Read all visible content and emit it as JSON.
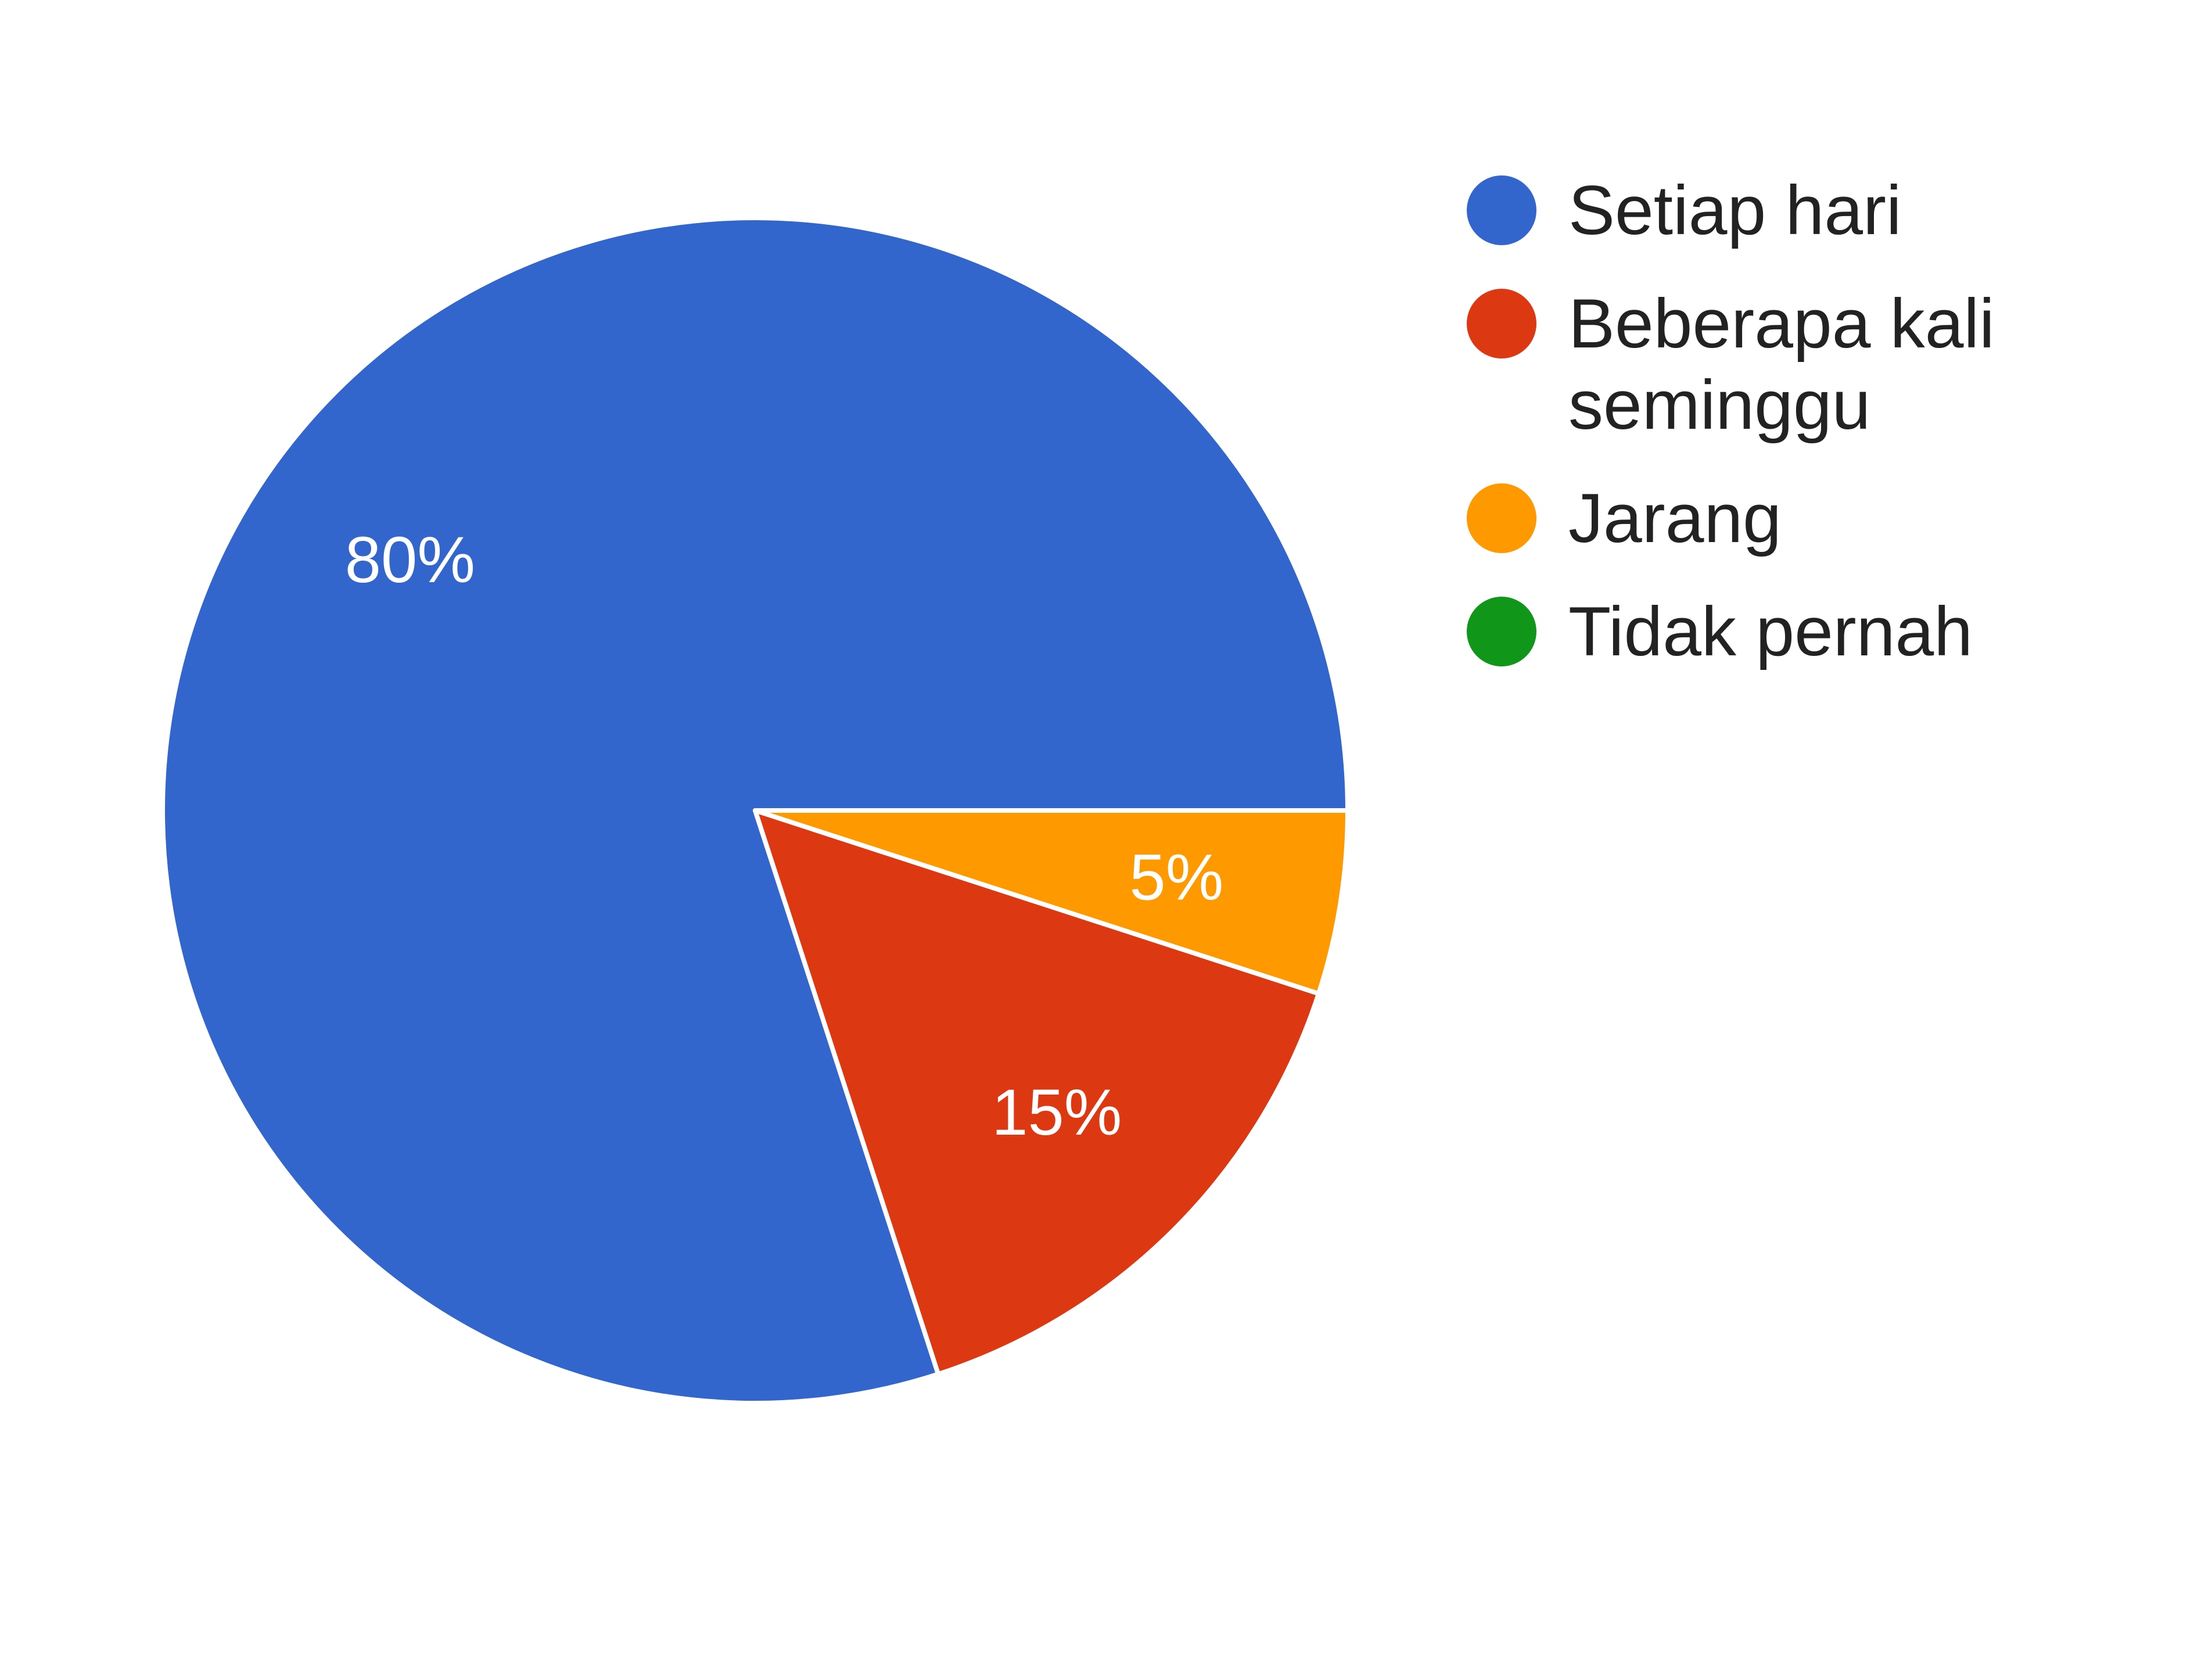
{
  "chart_data": {
    "type": "pie",
    "categories": [
      "Setiap hari",
      "Beberapa kali seminggu",
      "Jarang",
      "Tidak pernah"
    ],
    "values": [
      80,
      15,
      5,
      0
    ],
    "value_labels": [
      "80%",
      "15%",
      "5%",
      ""
    ],
    "legend_lines": [
      [
        "Setiap hari"
      ],
      [
        "Beberapa kali",
        "seminggu"
      ],
      [
        "Jarang"
      ],
      [
        "Tidak pernah"
      ]
    ],
    "colors": [
      "#3366cc",
      "#dc3912",
      "#ff9900",
      "#109618"
    ],
    "legend_position": "right",
    "start_angle_deg": 0,
    "direction": "counterclockwise"
  }
}
